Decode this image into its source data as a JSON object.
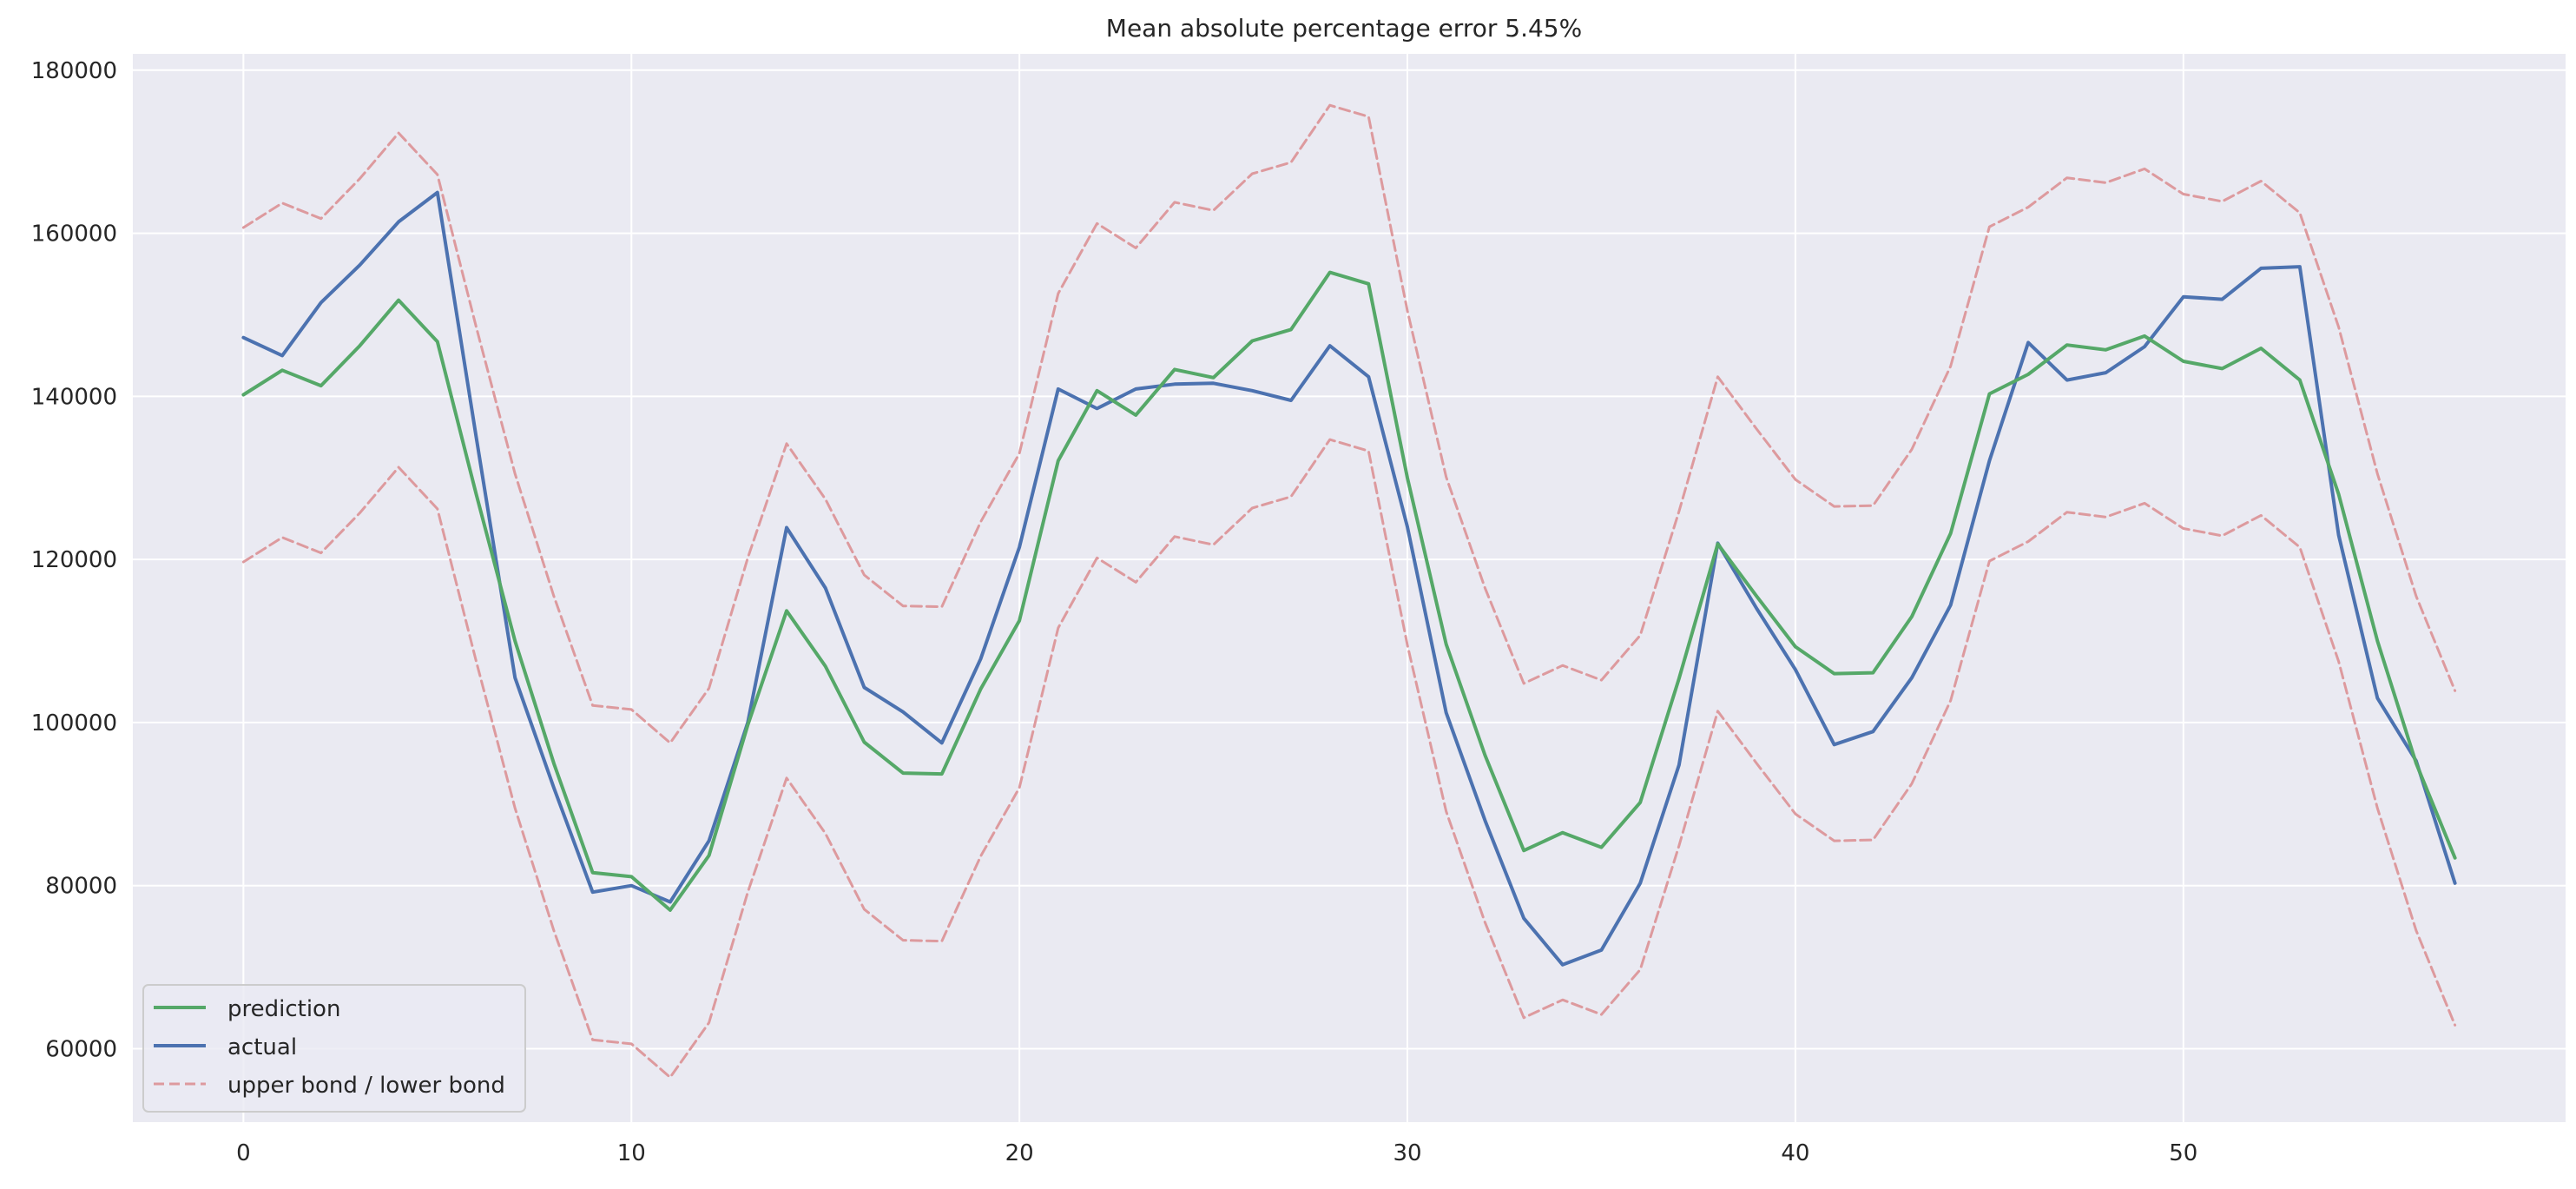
{
  "chart_data": {
    "type": "line",
    "title": "Mean absolute percentage error 5.45%",
    "xlabel": "",
    "ylabel": "",
    "xlim": [
      -2.85,
      59.85
    ],
    "ylim": [
      51000,
      182000
    ],
    "x_ticks": [
      0,
      10,
      20,
      30,
      40,
      50
    ],
    "y_ticks": [
      60000,
      80000,
      100000,
      120000,
      140000,
      160000,
      180000
    ],
    "grid": true,
    "legend_position": "lower-left",
    "legend": [
      {
        "label": "prediction",
        "style": "solid",
        "color": "#55a868"
      },
      {
        "label": "actual",
        "style": "solid",
        "color": "#4c72b0"
      },
      {
        "label": "upper bond / lower bond",
        "style": "dashed",
        "color": "#dd8452"
      }
    ],
    "colors": {
      "plot_background": "#eaeaf2",
      "grid": "#ffffff",
      "prediction": "#55a868",
      "actual": "#4c72b0",
      "bounds": "#dd9a9e"
    },
    "series": [
      {
        "name": "prediction",
        "style": "solid",
        "x": [
          0,
          1,
          2,
          3,
          4,
          5,
          6,
          7,
          8,
          9,
          10,
          11,
          12,
          13,
          14,
          15,
          16,
          17,
          18,
          19,
          20,
          21,
          22,
          23,
          24,
          25,
          26,
          27,
          28,
          29,
          30,
          31,
          32,
          33,
          34,
          35,
          36,
          37,
          38,
          39,
          40,
          41,
          42,
          43,
          44,
          45,
          46,
          47,
          48,
          49,
          50,
          51,
          52,
          53,
          54,
          55,
          56,
          57
        ],
        "values": [
          140200,
          143200,
          141300,
          146200,
          151800,
          146700,
          128000,
          110000,
          95000,
          81600,
          81100,
          77000,
          83700,
          99700,
          113700,
          106900,
          97600,
          93800,
          93700,
          104100,
          112500,
          132100,
          140700,
          137700,
          143300,
          142300,
          146800,
          148200,
          155200,
          153800,
          130000,
          109600,
          96000,
          84300,
          86500,
          84700,
          90200,
          105400,
          121900,
          115500,
          109300,
          106000,
          106100,
          113000,
          123200,
          140300,
          142700,
          146300,
          145700,
          147400,
          144300,
          143400,
          145900,
          142000,
          128000,
          110000,
          95000,
          83400
        ]
      },
      {
        "name": "actual",
        "style": "solid",
        "x": [
          0,
          1,
          2,
          3,
          4,
          5,
          6,
          7,
          8,
          9,
          10,
          11,
          12,
          13,
          14,
          15,
          16,
          17,
          18,
          19,
          20,
          21,
          22,
          23,
          24,
          25,
          26,
          27,
          28,
          29,
          30,
          31,
          32,
          33,
          34,
          35,
          36,
          37,
          38,
          39,
          40,
          41,
          42,
          43,
          44,
          45,
          46,
          47,
          48,
          49,
          50,
          51,
          52,
          53,
          54,
          55,
          56,
          57
        ],
        "values": [
          147200,
          145000,
          151500,
          156100,
          161400,
          165000,
          135000,
          105500,
          92000,
          79200,
          80000,
          78000,
          85500,
          100000,
          123900,
          116500,
          104300,
          101300,
          97500,
          107800,
          121500,
          140900,
          138500,
          140900,
          141500,
          141600,
          140700,
          139500,
          146200,
          142400,
          124000,
          101200,
          88000,
          76000,
          70300,
          72100,
          80300,
          94800,
          122000,
          114000,
          106500,
          97300,
          98900,
          105500,
          114400,
          132100,
          146600,
          142000,
          142900,
          146100,
          152200,
          151900,
          155700,
          155900,
          123000,
          103000,
          95300,
          80300
        ]
      },
      {
        "name": "upper bond",
        "style": "dashed",
        "x": [
          0,
          1,
          2,
          3,
          4,
          5,
          6,
          7,
          8,
          9,
          10,
          11,
          12,
          13,
          14,
          15,
          16,
          17,
          18,
          19,
          20,
          21,
          22,
          23,
          24,
          25,
          26,
          27,
          28,
          29,
          30,
          31,
          32,
          33,
          34,
          35,
          36,
          37,
          38,
          39,
          40,
          41,
          42,
          43,
          44,
          45,
          46,
          47,
          48,
          49,
          50,
          51,
          52,
          53,
          54,
          55,
          56,
          57
        ],
        "values": [
          160700,
          163700,
          161800,
          166700,
          172300,
          167200,
          148500,
          130500,
          115500,
          102100,
          101600,
          97500,
          104200,
          120200,
          134200,
          127400,
          118100,
          114300,
          114200,
          124600,
          133000,
          152600,
          161200,
          158200,
          163800,
          162800,
          167300,
          168700,
          175700,
          174300,
          150500,
          130100,
          116500,
          104800,
          107000,
          105200,
          110700,
          125900,
          142400,
          136000,
          129800,
          126500,
          126600,
          133500,
          143700,
          160800,
          163200,
          166800,
          166200,
          167900,
          164800,
          163900,
          166400,
          162500,
          148500,
          130500,
          115500,
          103900
        ]
      },
      {
        "name": "lower bond",
        "style": "dashed",
        "x": [
          0,
          1,
          2,
          3,
          4,
          5,
          6,
          7,
          8,
          9,
          10,
          11,
          12,
          13,
          14,
          15,
          16,
          17,
          18,
          19,
          20,
          21,
          22,
          23,
          24,
          25,
          26,
          27,
          28,
          29,
          30,
          31,
          32,
          33,
          34,
          35,
          36,
          37,
          38,
          39,
          40,
          41,
          42,
          43,
          44,
          45,
          46,
          47,
          48,
          49,
          50,
          51,
          52,
          53,
          54,
          55,
          56,
          57
        ],
        "values": [
          119700,
          122700,
          120800,
          125700,
          131300,
          126200,
          107500,
          89500,
          74500,
          61100,
          60600,
          56500,
          63200,
          79200,
          93200,
          86400,
          77100,
          73300,
          73200,
          83600,
          92000,
          111600,
          120200,
          117200,
          122800,
          121800,
          126300,
          127700,
          134700,
          133300,
          109500,
          89100,
          75500,
          63800,
          66000,
          64200,
          69700,
          84900,
          101400,
          95000,
          88800,
          85500,
          85600,
          92500,
          102700,
          119800,
          122200,
          125800,
          125200,
          126900,
          123800,
          122900,
          125400,
          121500,
          107500,
          89500,
          74500,
          62900
        ]
      }
    ]
  }
}
